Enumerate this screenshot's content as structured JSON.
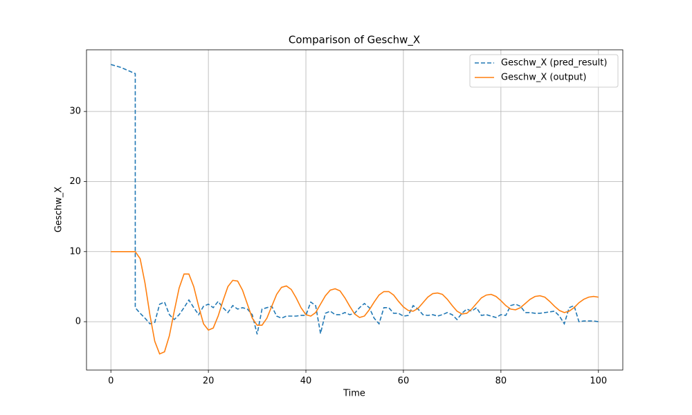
{
  "chart_data": {
    "type": "line",
    "title": "Comparison of Geschw_X",
    "xlabel": "Time",
    "ylabel": "Geschw_X",
    "x": [
      0,
      1,
      2,
      3,
      4,
      5,
      5,
      6,
      7,
      8,
      9,
      10,
      11,
      12,
      13,
      14,
      15,
      16,
      17,
      18,
      19,
      20,
      21,
      22,
      23,
      24,
      25,
      26,
      27,
      28,
      29,
      30,
      31,
      32,
      33,
      34,
      35,
      36,
      37,
      38,
      39,
      40,
      41,
      42,
      43,
      44,
      45,
      46,
      47,
      48,
      49,
      50,
      51,
      52,
      53,
      54,
      55,
      56,
      57,
      58,
      59,
      60,
      61,
      62,
      63,
      64,
      65,
      66,
      67,
      68,
      69,
      70,
      71,
      72,
      73,
      74,
      75,
      76,
      77,
      78,
      79,
      80,
      81,
      82,
      83,
      84,
      85,
      86,
      87,
      88,
      89,
      90,
      91,
      92,
      93,
      94,
      95,
      96,
      97,
      98,
      99,
      100
    ],
    "series": [
      {
        "name": "Geschw_X (pred_result)",
        "color": "#1f77b4",
        "linestyle": "dashed",
        "values": [
          36.7,
          36.5,
          36.3,
          36,
          35.7,
          35.4,
          2.0,
          1.2,
          0.5,
          -0.3,
          -0.1,
          2.5,
          2.8,
          1.0,
          0.3,
          1.0,
          2.0,
          3.1,
          2.0,
          1.0,
          2.2,
          2.5,
          2.0,
          2.9,
          2.0,
          1.3,
          2.3,
          1.8,
          2.0,
          1.8,
          1.0,
          -1.8,
          1.8,
          2.0,
          2.2,
          0.8,
          0.5,
          0.8,
          0.8,
          0.8,
          0.9,
          0.9,
          2.8,
          2.3,
          -1.7,
          1.2,
          1.5,
          1.0,
          1.0,
          1.3,
          1.0,
          1.2,
          2.0,
          2.6,
          2.0,
          0.5,
          -0.3,
          2.0,
          2.0,
          1.2,
          1.2,
          0.8,
          0.9,
          2.3,
          1.8,
          1.0,
          0.9,
          1.0,
          0.8,
          1.0,
          1.3,
          1.0,
          0.3,
          1.2,
          1.8,
          1.5,
          2.0,
          0.9,
          1.0,
          0.8,
          0.6,
          1.0,
          0.9,
          2.3,
          2.5,
          2.2,
          1.3,
          1.3,
          1.2,
          1.2,
          1.3,
          1.4,
          1.5,
          0.8,
          -0.3,
          2.0,
          2.3,
          0.0,
          0.1,
          0.1,
          0.1,
          0.0
        ]
      },
      {
        "name": "Geschw_X (output)",
        "color": "#ff7f0e",
        "linestyle": "solid",
        "values": [
          10,
          10,
          10,
          10,
          10,
          10,
          10,
          9.0,
          5.5,
          1.0,
          -2.8,
          -4.6,
          -4.3,
          -2.0,
          1.5,
          4.8,
          6.8,
          6.8,
          5.0,
          2.2,
          -0.3,
          -1.2,
          -0.9,
          0.8,
          3.0,
          5.0,
          5.9,
          5.8,
          4.5,
          2.5,
          0.5,
          -0.5,
          -0.5,
          0.5,
          2.2,
          3.9,
          4.9,
          5.1,
          4.6,
          3.4,
          2.0,
          1.0,
          0.8,
          1.3,
          2.5,
          3.7,
          4.5,
          4.7,
          4.4,
          3.4,
          2.2,
          1.1,
          0.6,
          0.8,
          1.7,
          2.8,
          3.8,
          4.3,
          4.3,
          3.8,
          2.9,
          2.1,
          1.6,
          1.5,
          1.9,
          2.7,
          3.5,
          4.0,
          4.1,
          3.9,
          3.2,
          2.3,
          1.5,
          1.1,
          1.2,
          1.8,
          2.6,
          3.4,
          3.8,
          3.9,
          3.6,
          3.0,
          2.3,
          1.8,
          1.7,
          2.0,
          2.6,
          3.2,
          3.6,
          3.7,
          3.5,
          2.9,
          2.2,
          1.6,
          1.3,
          1.5,
          2.0,
          2.7,
          3.2,
          3.5,
          3.6,
          3.5
        ]
      }
    ],
    "xlim": [
      -5,
      105
    ],
    "ylim": [
      -6.9,
      38.8
    ],
    "xticks": [
      0,
      20,
      40,
      60,
      80,
      100
    ],
    "yticks": [
      0,
      10,
      20,
      30
    ],
    "grid": true,
    "legend": "upper right"
  }
}
